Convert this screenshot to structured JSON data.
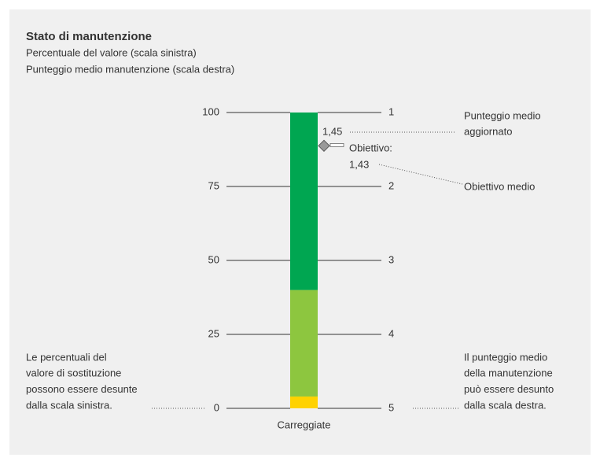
{
  "chart_data": {
    "type": "stacked_bar",
    "title": "Stato di manutenzione",
    "subtitle": [
      "Percentuale del valore (scala sinistra)",
      "Punteggio medio manutenzione (scala destra)"
    ],
    "categories": [
      "Carreggiate"
    ],
    "series": [
      {
        "color": "#ffd200",
        "values": [
          4
        ]
      },
      {
        "color": "#8dc63f",
        "values": [
          36
        ]
      },
      {
        "color": "#00a651",
        "values": [
          60
        ]
      }
    ],
    "ylim": [
      0,
      100
    ],
    "yticks": [
      0,
      25,
      50,
      75,
      100
    ],
    "y2lim": [
      5,
      1
    ],
    "y2ticks": [
      1,
      2,
      3,
      4,
      5
    ],
    "annotations": {
      "score": {
        "value": 1.45,
        "value_label": "1,45",
        "note": [
          "Punteggio medio",
          "aggiornato"
        ]
      },
      "target": {
        "value": 1.43,
        "prefix": "Obiettivo:",
        "value_label": "1,43",
        "note": [
          "Obiettivo medio"
        ]
      }
    },
    "left_note": [
      "Le percentuali del",
      "valore di sostituzione",
      "possono essere desunte",
      "dalla scala sinistra."
    ],
    "right_note": [
      "Il punteggio medio",
      "della manutenzione",
      "può essere desunto",
      "dalla scala destra."
    ]
  }
}
